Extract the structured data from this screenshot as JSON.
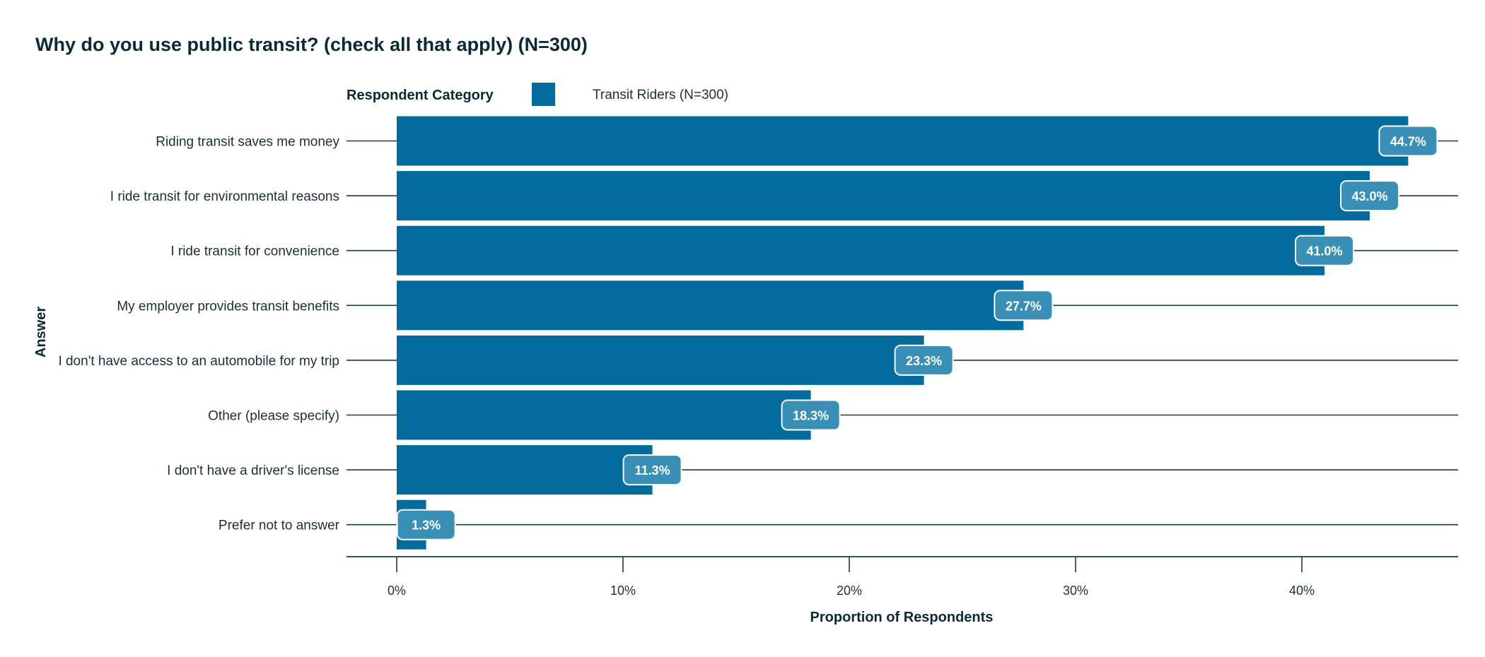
{
  "chart_data": {
    "type": "bar",
    "orientation": "horizontal",
    "title": "Why do you use public transit? (check all that apply) (N=300)",
    "legend_title": "Respondent Category",
    "legend_position": "top",
    "xlabel": "Proportion of Respondents",
    "ylabel": "Answer",
    "xlim": [
      0,
      47
    ],
    "xticks": [
      0,
      10,
      20,
      30,
      40
    ],
    "xtick_labels": [
      "0%",
      "10%",
      "20%",
      "30%",
      "40%"
    ],
    "grid": false,
    "categories": [
      "Riding transit saves me money",
      "I ride transit for environmental reasons",
      "I ride transit for convenience",
      "My employer provides transit benefits",
      "I don't have access to an automobile for my trip",
      "Other (please specify)",
      "I don't have a driver's license",
      "Prefer not to answer"
    ],
    "series": [
      {
        "name": "Transit Riders (N=300)",
        "color": "#046c9c",
        "values": [
          44.7,
          43.0,
          41.0,
          27.7,
          23.3,
          18.3,
          11.3,
          1.3
        ],
        "labels": [
          "44.7%",
          "43.0%",
          "41.0%",
          "27.7%",
          "23.3%",
          "18.3%",
          "11.3%",
          "1.3%"
        ]
      }
    ],
    "colors": {
      "bar": "#046c9c",
      "label_box": "#3a8fb7",
      "text_dark": "#0b2a36",
      "axis_line": "#1a3a46"
    }
  }
}
